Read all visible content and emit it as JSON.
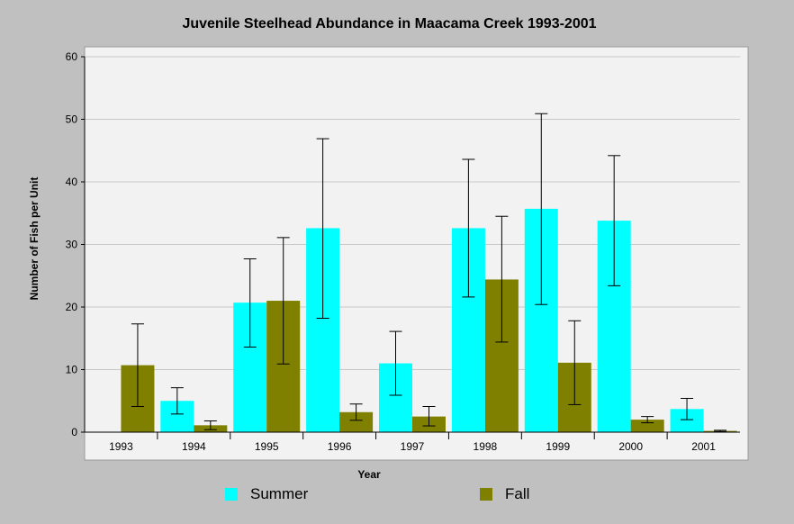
{
  "colors": {
    "summer": "#00ffff",
    "fall": "#808000",
    "background": "#c0c0c0",
    "plot_bg": "#f2f2f2",
    "grid": "#c8c8c8"
  },
  "chart_data": {
    "type": "bar",
    "title": "Juvenile Steelhead Abundance in Maacama Creek 1993-2001",
    "xlabel": "Year",
    "ylabel": "Number of Fish per Unit",
    "ylim": [
      0,
      60
    ],
    "yticks": [
      0,
      10,
      20,
      30,
      40,
      50,
      60
    ],
    "grid": true,
    "legend_position": "bottom",
    "categories": [
      "1993",
      "1994",
      "1995",
      "1996",
      "1997",
      "1998",
      "1999",
      "2000",
      "2001"
    ],
    "series": [
      {
        "name": "Summer",
        "values": [
          null,
          5.0,
          20.7,
          32.6,
          11.0,
          32.6,
          35.7,
          33.8,
          3.7
        ],
        "error_low": [
          null,
          2.9,
          13.6,
          18.2,
          5.9,
          21.6,
          20.4,
          23.4,
          2.0
        ],
        "error_high": [
          null,
          7.1,
          27.7,
          46.9,
          16.1,
          43.6,
          50.9,
          44.2,
          5.4
        ]
      },
      {
        "name": "Fall",
        "values": [
          10.7,
          1.1,
          21.0,
          3.2,
          2.5,
          24.4,
          11.1,
          2.0,
          0.2
        ],
        "error_low": [
          4.1,
          0.4,
          10.9,
          1.9,
          1.0,
          14.4,
          4.4,
          1.5,
          0.1
        ],
        "error_high": [
          17.3,
          1.8,
          31.1,
          4.5,
          4.1,
          34.5,
          17.8,
          2.5,
          0.3
        ]
      }
    ]
  }
}
